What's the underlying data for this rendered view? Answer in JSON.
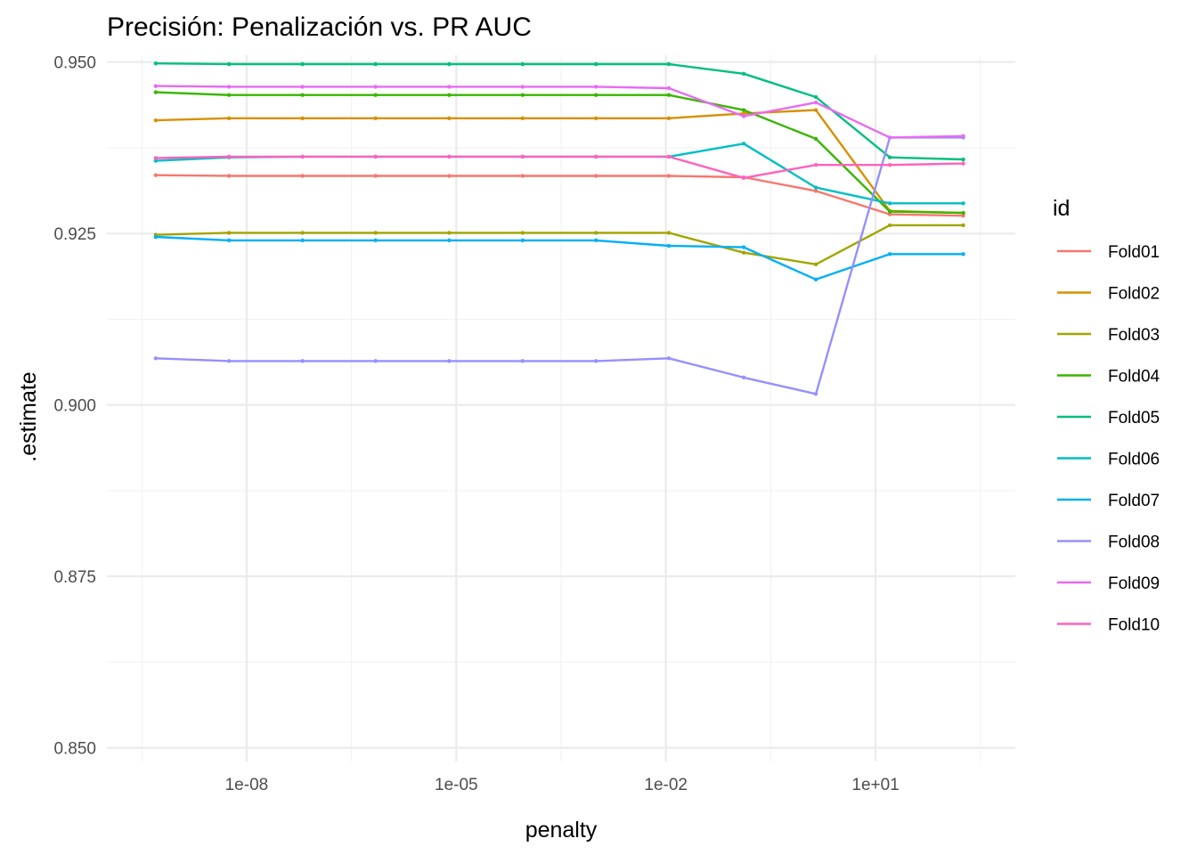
{
  "chart_data": {
    "type": "line",
    "title": "Precisión: Penalización vs. PR AUC",
    "xlabel": "penalty",
    "ylabel": ".estimate",
    "x_scale": "log10",
    "xlim": [
      1e-10,
      1000
    ],
    "ylim": [
      0.848,
      0.951
    ],
    "x_ticks": [
      {
        "value": 1e-08,
        "label": "1e-08"
      },
      {
        "value": 1e-05,
        "label": "1e-05"
      },
      {
        "value": 0.01,
        "label": "1e-02"
      },
      {
        "value": 10,
        "label": "1e+01"
      }
    ],
    "y_ticks": [
      {
        "value": 0.85,
        "label": "0.850"
      },
      {
        "value": 0.875,
        "label": "0.875"
      },
      {
        "value": 0.9,
        "label": "0.900"
      },
      {
        "value": 0.925,
        "label": "0.925"
      },
      {
        "value": 0.95,
        "label": "0.950"
      }
    ],
    "grid": true,
    "legend": {
      "title": "id",
      "position": "right"
    },
    "x": [
      5e-10,
      5.6e-09,
      6.3e-08,
      7e-07,
      7.9e-06,
      8.9e-05,
      0.001,
      0.011,
      0.13,
      1.4,
      16,
      180
    ],
    "series": [
      {
        "name": "Fold01",
        "color": "#F8766D",
        "values": [
          0.9335,
          0.9334,
          0.9334,
          0.9334,
          0.9334,
          0.9334,
          0.9334,
          0.9334,
          0.9332,
          0.9312,
          0.9278,
          0.9276
        ]
      },
      {
        "name": "Fold02",
        "color": "#D89000",
        "values": [
          0.9415,
          0.9418,
          0.9418,
          0.9418,
          0.9418,
          0.9418,
          0.9418,
          0.9418,
          0.9425,
          0.943,
          0.9283,
          0.928
        ]
      },
      {
        "name": "Fold03",
        "color": "#A3A500",
        "values": [
          0.9248,
          0.9251,
          0.9251,
          0.9251,
          0.9251,
          0.9251,
          0.9251,
          0.9251,
          0.9222,
          0.9205,
          0.9262,
          0.9262
        ]
      },
      {
        "name": "Fold04",
        "color": "#39B600",
        "values": [
          0.9456,
          0.9452,
          0.9452,
          0.9452,
          0.9452,
          0.9452,
          0.9452,
          0.9452,
          0.943,
          0.9388,
          0.9282,
          0.928
        ]
      },
      {
        "name": "Fold05",
        "color": "#00BF7D",
        "values": [
          0.9498,
          0.9497,
          0.9497,
          0.9497,
          0.9497,
          0.9497,
          0.9497,
          0.9497,
          0.9483,
          0.9449,
          0.9361,
          0.9358
        ]
      },
      {
        "name": "Fold06",
        "color": "#00BFC4",
        "values": [
          0.9356,
          0.9361,
          0.9362,
          0.9362,
          0.9362,
          0.9362,
          0.9362,
          0.9362,
          0.9381,
          0.9317,
          0.9294,
          0.9294
        ]
      },
      {
        "name": "Fold07",
        "color": "#00B0F6",
        "values": [
          0.9245,
          0.924,
          0.924,
          0.924,
          0.924,
          0.924,
          0.924,
          0.9232,
          0.923,
          0.9183,
          0.922,
          0.922
        ]
      },
      {
        "name": "Fold08",
        "color": "#9590FF",
        "values": [
          0.9068,
          0.9064,
          0.9064,
          0.9064,
          0.9064,
          0.9064,
          0.9064,
          0.9068,
          0.904,
          0.9016,
          0.939,
          0.939
        ]
      },
      {
        "name": "Fold09",
        "color": "#E76BF3",
        "values": [
          0.9465,
          0.9464,
          0.9464,
          0.9464,
          0.9464,
          0.9464,
          0.9464,
          0.9462,
          0.9421,
          0.9441,
          0.939,
          0.9392
        ]
      },
      {
        "name": "Fold10",
        "color": "#FF62BC",
        "values": [
          0.936,
          0.9362,
          0.9362,
          0.9362,
          0.9362,
          0.9362,
          0.9362,
          0.9362,
          0.9331,
          0.935,
          0.935,
          0.9352
        ]
      }
    ]
  }
}
